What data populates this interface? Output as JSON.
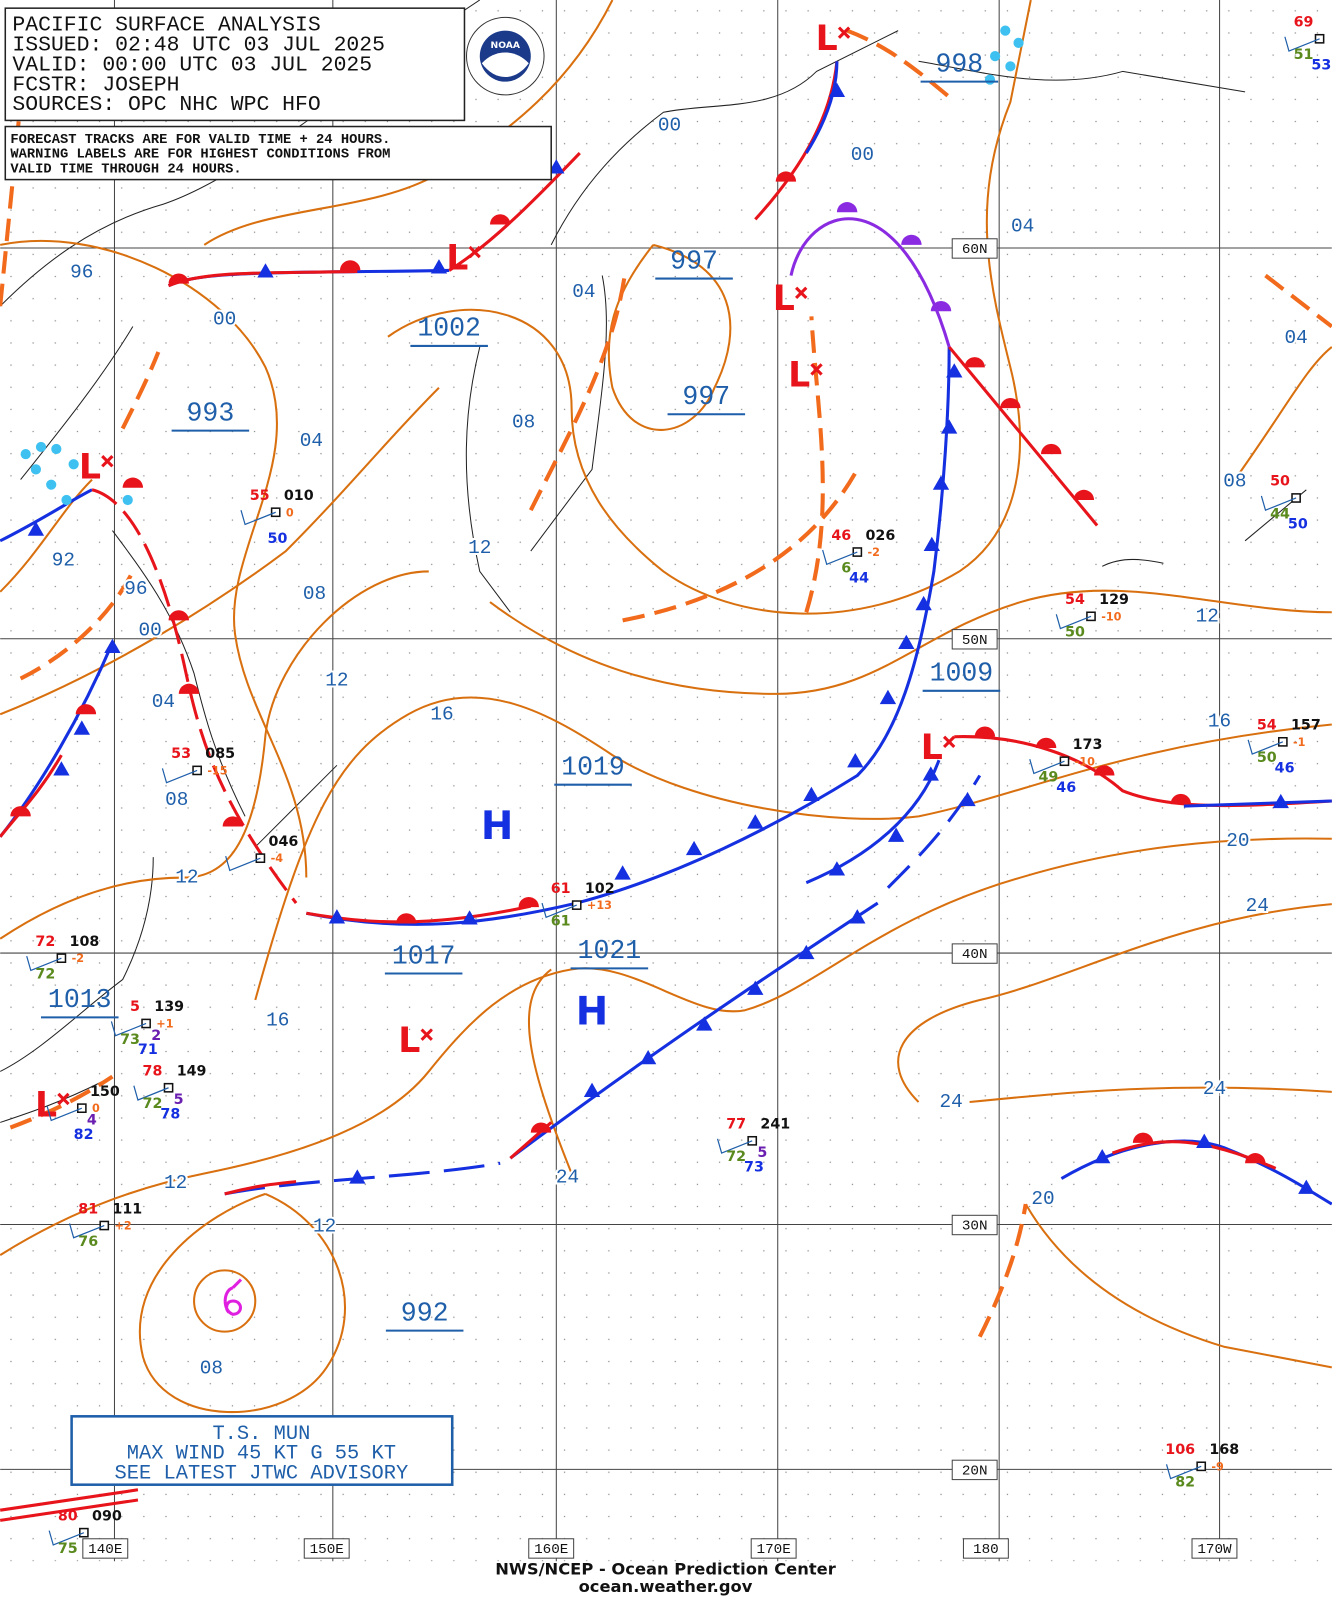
{
  "header": {
    "lines": [
      "PACIFIC SURFACE ANALYSIS",
      "ISSUED: 02:48 UTC 03 JUL 2025",
      "VALID:  00:00 UTC 03 JUL 2025",
      "FCSTR:  JOSEPH",
      "SOURCES: OPC NHC WPC HFO"
    ]
  },
  "logo": "NOAA",
  "notice": {
    "lines": [
      "FORECAST TRACKS ARE FOR VALID TIME + 24 HOURS.",
      "WARNING LABELS ARE FOR HIGHEST CONDITIONS FROM",
      "VALID TIME THROUGH 24 HOURS."
    ]
  },
  "centers": {
    "lows": [
      "L",
      "L",
      "L",
      "L",
      "L",
      "L",
      "L",
      "L"
    ],
    "highs": [
      "H",
      "H"
    ]
  },
  "pressures": [
    "998",
    "997",
    "997",
    "1002",
    "993",
    "1009",
    "1019",
    "1017",
    "1021",
    "1013",
    "992"
  ],
  "isobar_labels": [
    "00",
    "00",
    "04",
    "96",
    "00",
    "04",
    "04",
    "08",
    "04",
    "92",
    "12",
    "96",
    "08",
    "00",
    "12",
    "12",
    "04",
    "16",
    "16",
    "08",
    "20",
    "12",
    "24",
    "16",
    "24",
    "24",
    "12",
    "24",
    "20",
    "12",
    "08",
    "08"
  ],
  "grid_labels": [
    "60N",
    "50N",
    "40N",
    "30N",
    "20N",
    "140E",
    "150E",
    "160E",
    "170E",
    "180",
    "170W"
  ],
  "stations": [
    {
      "id": "010",
      "temp": "55",
      "sea": "50",
      "change": "0"
    },
    {
      "id": "026",
      "temp": "46",
      "dew": "6",
      "sea": "44",
      "change": "-2"
    },
    {
      "id": "129",
      "temp": "54",
      "dew": "50",
      "change": "-10"
    },
    {
      "id": "157",
      "temp": "54",
      "dew": "50",
      "sea": "46",
      "change": "-1"
    },
    {
      "id": "173",
      "dew": "49",
      "sea": "46",
      "change": "-10"
    },
    {
      "id": "085",
      "temp": "53",
      "change": "-15"
    },
    {
      "id": "046",
      "change": "-4"
    },
    {
      "id": "102",
      "temp": "61",
      "dew": "61",
      "change": "+13"
    },
    {
      "id": "108",
      "temp": "72",
      "dew": "72",
      "change": "-2"
    },
    {
      "id": "139",
      "temp": "5",
      "dew": "73",
      "extra": "2",
      "sea": "71",
      "change": "+1"
    },
    {
      "id": "149",
      "temp": "78",
      "dew": "72",
      "extra": "5",
      "sea": "78"
    },
    {
      "id": "150",
      "extra": "4",
      "sea": "82",
      "change": "0"
    },
    {
      "id": "241",
      "temp": "77",
      "dew": "72",
      "extra": "5",
      "sea": "73"
    },
    {
      "id": "111",
      "temp": "81",
      "dew": "76",
      "change": "+2"
    },
    {
      "id": "168",
      "temp": "106",
      "dew": "82",
      "change": "-9"
    },
    {
      "id": "090",
      "temp": "80",
      "dew": "75"
    },
    {
      "temp": "69",
      "dew": "51",
      "sea": "53"
    },
    {
      "temp": "50",
      "dew": "44",
      "sea": "50"
    }
  ],
  "storm_box": {
    "lines": [
      "T.S. MUN",
      "MAX WIND 45 KT G 55 KT",
      "SEE LATEST JTWC ADVISORY"
    ]
  },
  "footer": {
    "lines": [
      "NWS/NCEP - Ocean Prediction Center",
      "ocean.weather.gov"
    ]
  }
}
